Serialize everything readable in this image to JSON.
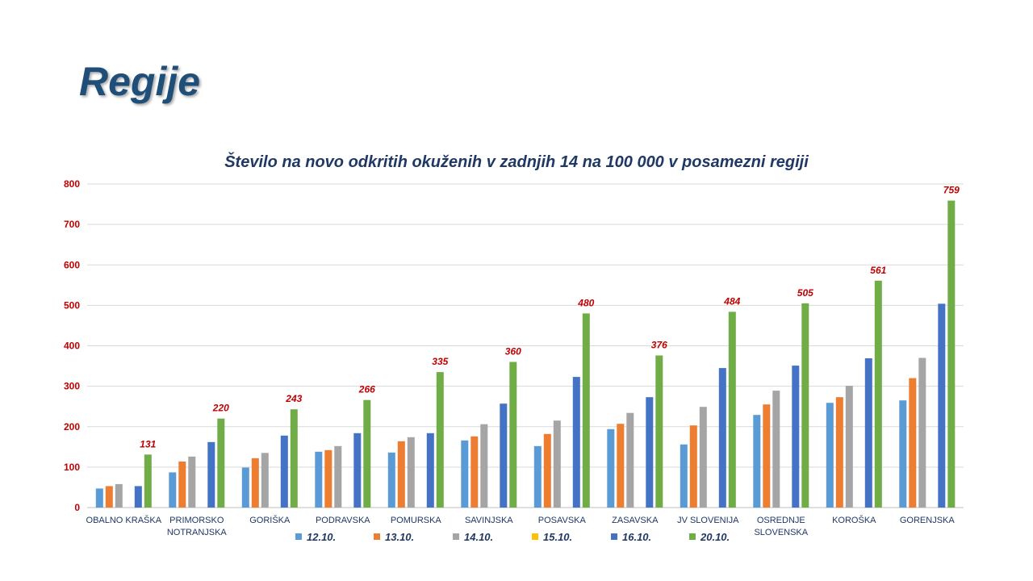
{
  "slide": {
    "title": "Regije"
  },
  "colors": {
    "series": [
      "#5b9bd5",
      "#ed7d31",
      "#a5a5a5",
      "#ffc000",
      "#4472c4",
      "#70ad47"
    ],
    "axis_tick": "#c00000",
    "data_label": "#c00000",
    "category_label": "#1f3864",
    "legend_text": "#1f3864",
    "grid": "#d9d9d9"
  },
  "chart_data": {
    "type": "bar",
    "title": "Število na novo odkritih okuženih v zadnjih 14 na 100 000 v posamezni regiji",
    "xlabel": "",
    "ylabel": "",
    "ylim": [
      0,
      800
    ],
    "yticks": [
      0,
      100,
      200,
      300,
      400,
      500,
      600,
      700,
      800
    ],
    "grid": true,
    "legend_position": "bottom",
    "categories": [
      [
        "OBALNO KRAŠKA"
      ],
      [
        "PRIMORSKO",
        "NOTRANJSKA"
      ],
      [
        "GORIŠKA"
      ],
      [
        "PODRAVSKA"
      ],
      [
        "POMURSKA"
      ],
      [
        "SAVINJSKA"
      ],
      [
        "POSAVSKA"
      ],
      [
        "ZASAVSKA"
      ],
      [
        "JV SLOVENIJA"
      ],
      [
        "OSREDNJE",
        "SLOVENSKA"
      ],
      [
        "KOROŠKA"
      ],
      [
        "GORENJSKA"
      ]
    ],
    "series": [
      {
        "name": "12.10.",
        "values": [
          47,
          87,
          99,
          138,
          136,
          166,
          152,
          194,
          156,
          229,
          259,
          265
        ]
      },
      {
        "name": "13.10.",
        "values": [
          53,
          114,
          122,
          142,
          164,
          176,
          182,
          207,
          203,
          255,
          273,
          320
        ]
      },
      {
        "name": "14.10.",
        "values": [
          58,
          126,
          135,
          152,
          174,
          206,
          215,
          234,
          249,
          289,
          301,
          370
        ]
      },
      {
        "name": "15.10.",
        "values": [
          0,
          0,
          0,
          0,
          0,
          0,
          0,
          0,
          0,
          0,
          0,
          0
        ]
      },
      {
        "name": "16.10.",
        "values": [
          53,
          162,
          178,
          184,
          184,
          257,
          323,
          273,
          345,
          351,
          369,
          504
        ]
      },
      {
        "name": "20.10.",
        "values": [
          131,
          220,
          243,
          266,
          335,
          360,
          480,
          376,
          484,
          505,
          561,
          759
        ]
      }
    ],
    "data_labels": {
      "series": "20.10.",
      "values": [
        "131",
        "220",
        "243",
        "266",
        "335",
        "360",
        "480",
        "376",
        "484",
        "505",
        "561",
        "759"
      ]
    }
  }
}
